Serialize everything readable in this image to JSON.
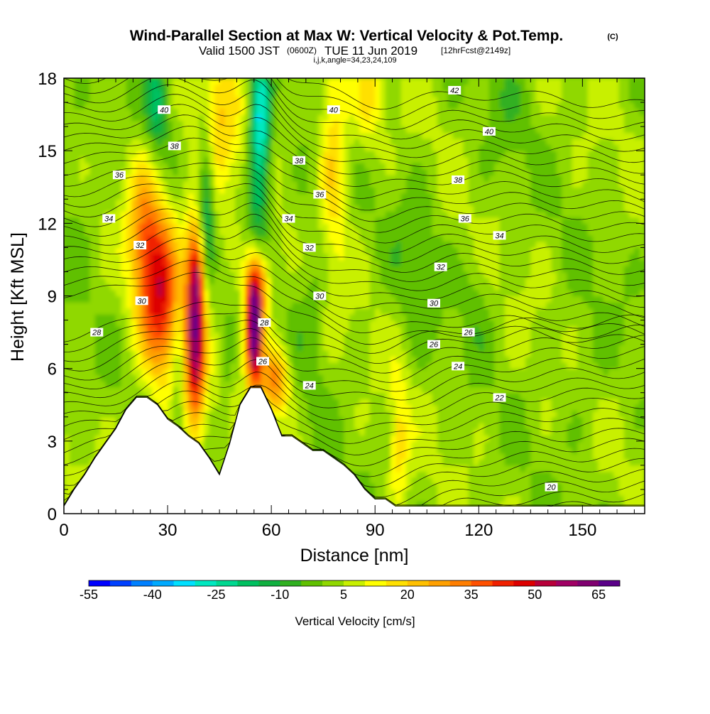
{
  "header": {
    "title": "Wind-Parallel Section at Max W: Vertical Velocity & Pot.Temp.",
    "copyright_badge": "(C)",
    "subtitle_valid": "Valid 1500 JST",
    "subtitle_utc": "(0600Z)",
    "subtitle_date": "TUE 11 Jun 2019",
    "subtitle_fcst": "[12hrFcst@2149z]",
    "indices": "i,j,k,angle=34,23,24,109"
  },
  "chart_data": {
    "type": "heatmap",
    "title": "Wind-Parallel Section at Max W: Vertical Velocity & Pot.Temp.",
    "xlabel": "Distance [nm]",
    "ylabel": "Height [Kft MSL]",
    "xlim": [
      0,
      168
    ],
    "ylim": [
      0,
      18
    ],
    "x_ticks": [
      "0",
      "30",
      "60",
      "90",
      "120",
      "150"
    ],
    "y_ticks": [
      "0",
      "3",
      "6",
      "9",
      "12",
      "15",
      "18"
    ],
    "x_tick_values": [
      0,
      30,
      60,
      90,
      120,
      150
    ],
    "y_tick_values": [
      0,
      3,
      6,
      9,
      12,
      15,
      18
    ],
    "grid": false,
    "colorbar": {
      "label": "Vertical Velocity [cm/s]",
      "tick_labels": [
        "-55",
        "-40",
        "-25",
        "-10",
        "5",
        "20",
        "35",
        "50",
        "65"
      ],
      "min": -55,
      "max": 70,
      "step": 5,
      "colors": [
        "#0000ff",
        "#0040ff",
        "#0080ff",
        "#00aaff",
        "#00e0ff",
        "#00e8c0",
        "#00d890",
        "#00c060",
        "#10b040",
        "#30b020",
        "#60c000",
        "#90d800",
        "#c8f000",
        "#ffff00",
        "#ffe000",
        "#ffc000",
        "#ffa000",
        "#ff7e00",
        "#ff5000",
        "#f02000",
        "#dd0000",
        "#b8003a",
        "#a00064",
        "#800070",
        "#5a0088"
      ]
    },
    "terrain": [
      [
        0,
        0.3
      ],
      [
        3,
        1.0
      ],
      [
        6,
        1.6
      ],
      [
        9,
        2.3
      ],
      [
        12,
        2.9
      ],
      [
        15,
        3.5
      ],
      [
        18,
        4.3
      ],
      [
        21,
        4.8
      ],
      [
        24,
        4.8
      ],
      [
        27,
        4.5
      ],
      [
        30,
        3.9
      ],
      [
        33,
        3.6
      ],
      [
        36,
        3.2
      ],
      [
        39,
        2.9
      ],
      [
        42,
        2.3
      ],
      [
        45,
        1.6
      ],
      [
        48,
        2.9
      ],
      [
        51,
        4.5
      ],
      [
        54,
        5.2
      ],
      [
        57,
        5.2
      ],
      [
        60,
        4.3
      ],
      [
        63,
        3.2
      ],
      [
        66,
        3.2
      ],
      [
        69,
        2.9
      ],
      [
        72,
        2.6
      ],
      [
        75,
        2.6
      ],
      [
        78,
        2.3
      ],
      [
        81,
        2.0
      ],
      [
        84,
        1.6
      ],
      [
        87,
        1.0
      ],
      [
        90,
        0.6
      ],
      [
        93,
        0.6
      ],
      [
        96,
        0.3
      ],
      [
        100,
        0.3
      ],
      [
        168,
        0.3
      ]
    ],
    "w_features": [
      {
        "x": 38,
        "y": 7.5,
        "sx": 2.0,
        "sy": 2.8,
        "w": 55
      },
      {
        "x": 38.5,
        "y": 10.2,
        "sx": 1.5,
        "sy": 1.2,
        "w": 20
      },
      {
        "x": 55,
        "y": 7.5,
        "sx": 1.8,
        "sy": 1.6,
        "w": 70
      },
      {
        "x": 56,
        "y": 9.6,
        "sx": 2.4,
        "sy": 1.2,
        "w": 38
      },
      {
        "x": 28,
        "y": 9.0,
        "sx": 4.0,
        "sy": 2.5,
        "w": 40
      },
      {
        "x": 23,
        "y": 11.6,
        "sx": 3.2,
        "sy": 2.2,
        "w": 22
      },
      {
        "x": 61,
        "y": 5.5,
        "sx": 3.0,
        "sy": 1.0,
        "w": 30
      },
      {
        "x": 78,
        "y": 15.0,
        "sx": 3.0,
        "sy": 3.6,
        "w": 18
      },
      {
        "x": 88,
        "y": 17.0,
        "sx": 3.0,
        "sy": 1.5,
        "w": 12
      },
      {
        "x": 97,
        "y": 2.8,
        "sx": 2.0,
        "sy": 2.0,
        "w": 14
      },
      {
        "x": 44,
        "y": 15.5,
        "sx": 5.0,
        "sy": 2.6,
        "w": 16
      },
      {
        "x": 33,
        "y": 6.0,
        "sx": 1.3,
        "sy": 2.6,
        "w": -8
      },
      {
        "x": 47,
        "y": 4.2,
        "sx": 1.2,
        "sy": 2.2,
        "w": -6
      },
      {
        "x": 57,
        "y": 16.3,
        "sx": 2.0,
        "sy": 2.0,
        "w": -28
      },
      {
        "x": 56,
        "y": 12.0,
        "sx": 2.2,
        "sy": 3.5,
        "w": -18
      },
      {
        "x": 41,
        "y": 13.2,
        "sx": 1.8,
        "sy": 2.4,
        "w": -24
      },
      {
        "x": 27,
        "y": 17.1,
        "sx": 2.2,
        "sy": 1.5,
        "w": -20
      },
      {
        "x": 72,
        "y": 10.0,
        "sx": 4.0,
        "sy": 3.5,
        "w": -6
      },
      {
        "x": 102,
        "y": 10.4,
        "sx": 4.5,
        "sy": 2.5,
        "w": -6
      },
      {
        "x": 119,
        "y": 9.0,
        "sx": 3.0,
        "sy": 1.6,
        "w": -5
      },
      {
        "x": 128,
        "y": 17.0,
        "sx": 5.0,
        "sy": 2.0,
        "w": -4
      },
      {
        "x": 4,
        "y": 13.5,
        "sx": 4.0,
        "sy": 2.0,
        "w": -5
      },
      {
        "x": 150,
        "y": 6.0,
        "sx": 5.0,
        "sy": 2.0,
        "w": -4
      }
    ],
    "theta_contour_labels": [
      {
        "v": "20",
        "x": 141,
        "y": 1.1
      },
      {
        "v": "22",
        "x": 126,
        "y": 4.8
      },
      {
        "v": "24",
        "x": 71,
        "y": 5.3
      },
      {
        "v": "24",
        "x": 114,
        "y": 6.1
      },
      {
        "v": "26",
        "x": 57.5,
        "y": 6.3
      },
      {
        "v": "26",
        "x": 107,
        "y": 7.0
      },
      {
        "v": "26",
        "x": 117,
        "y": 7.5
      },
      {
        "v": "28",
        "x": 9.5,
        "y": 7.5
      },
      {
        "v": "28",
        "x": 58,
        "y": 7.9
      },
      {
        "v": "30",
        "x": 22.5,
        "y": 8.8
      },
      {
        "v": "30",
        "x": 74,
        "y": 9.0
      },
      {
        "v": "30",
        "x": 107,
        "y": 8.7
      },
      {
        "v": "32",
        "x": 22,
        "y": 11.1
      },
      {
        "v": "32",
        "x": 71,
        "y": 11.0
      },
      {
        "v": "32",
        "x": 109,
        "y": 10.2
      },
      {
        "v": "34",
        "x": 13,
        "y": 12.2
      },
      {
        "v": "34",
        "x": 65,
        "y": 12.2
      },
      {
        "v": "34",
        "x": 126,
        "y": 11.5
      },
      {
        "v": "36",
        "x": 16,
        "y": 14.0
      },
      {
        "v": "36",
        "x": 74,
        "y": 13.2
      },
      {
        "v": "36",
        "x": 116,
        "y": 12.2
      },
      {
        "v": "38",
        "x": 32,
        "y": 15.2
      },
      {
        "v": "38",
        "x": 68,
        "y": 14.6
      },
      {
        "v": "38",
        "x": 114,
        "y": 13.8
      },
      {
        "v": "40",
        "x": 29,
        "y": 16.7
      },
      {
        "v": "40",
        "x": 78,
        "y": 16.7
      },
      {
        "v": "40",
        "x": 123,
        "y": 15.8
      },
      {
        "v": "42",
        "x": 113,
        "y": 17.5
      }
    ]
  }
}
